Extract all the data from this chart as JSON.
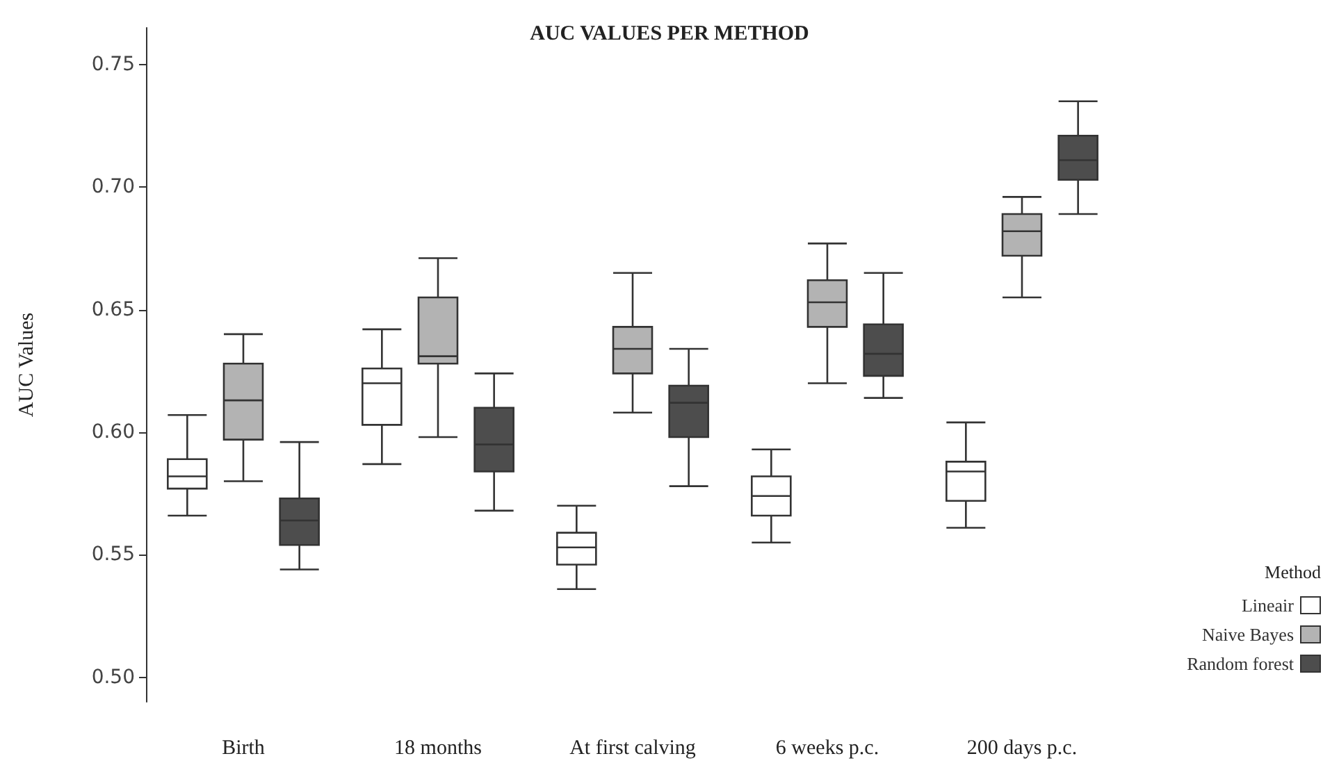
{
  "chart_data": {
    "type": "box",
    "title": "AUC VALUES PER METHOD",
    "ylabel": "AUC Values",
    "legend_title": "Method",
    "legend": "bottom right",
    "grid": false,
    "categories": [
      "Birth",
      "18 months",
      "At first calving",
      "6 weeks p.c.",
      "200 days p.c."
    ],
    "ylim": [
      0.49,
      0.765
    ],
    "yticks": [
      {
        "value": 0.5,
        "label": "0.50"
      },
      {
        "value": 0.55,
        "label": "0.55"
      },
      {
        "value": 0.6,
        "label": "0.60"
      },
      {
        "value": 0.65,
        "label": "0.65"
      },
      {
        "value": 0.7,
        "label": "0.70"
      },
      {
        "value": 0.75,
        "label": "0.75"
      }
    ],
    "series": [
      {
        "name": "Lineair",
        "color": "#ffffff",
        "boxes": [
          {
            "low": 0.566,
            "q1": 0.577,
            "median": 0.582,
            "q3": 0.589,
            "high": 0.607
          },
          {
            "low": 0.587,
            "q1": 0.603,
            "median": 0.62,
            "q3": 0.626,
            "high": 0.642
          },
          {
            "low": 0.536,
            "q1": 0.546,
            "median": 0.553,
            "q3": 0.559,
            "high": 0.57
          },
          {
            "low": 0.555,
            "q1": 0.566,
            "median": 0.574,
            "q3": 0.582,
            "high": 0.593
          },
          {
            "low": 0.561,
            "q1": 0.572,
            "median": 0.584,
            "q3": 0.588,
            "high": 0.604
          }
        ]
      },
      {
        "name": "Naive Bayes",
        "color": "#b3b3b3",
        "boxes": [
          {
            "low": 0.58,
            "q1": 0.597,
            "median": 0.613,
            "q3": 0.628,
            "high": 0.64
          },
          {
            "low": 0.598,
            "q1": 0.628,
            "median": 0.631,
            "q3": 0.655,
            "high": 0.671
          },
          {
            "low": 0.608,
            "q1": 0.624,
            "median": 0.634,
            "q3": 0.643,
            "high": 0.665
          },
          {
            "low": 0.62,
            "q1": 0.643,
            "median": 0.653,
            "q3": 0.662,
            "high": 0.677
          },
          {
            "low": 0.655,
            "q1": 0.672,
            "median": 0.682,
            "q3": 0.689,
            "high": 0.696
          }
        ]
      },
      {
        "name": "Random forest",
        "color": "#4d4d4d",
        "boxes": [
          {
            "low": 0.544,
            "q1": 0.554,
            "median": 0.564,
            "q3": 0.573,
            "high": 0.596
          },
          {
            "low": 0.568,
            "q1": 0.584,
            "median": 0.595,
            "q3": 0.61,
            "high": 0.624
          },
          {
            "low": 0.578,
            "q1": 0.598,
            "median": 0.612,
            "q3": 0.619,
            "high": 0.634
          },
          {
            "low": 0.614,
            "q1": 0.623,
            "median": 0.632,
            "q3": 0.644,
            "high": 0.665
          },
          {
            "low": 0.689,
            "q1": 0.703,
            "median": 0.711,
            "q3": 0.721,
            "high": 0.735
          }
        ]
      }
    ]
  }
}
